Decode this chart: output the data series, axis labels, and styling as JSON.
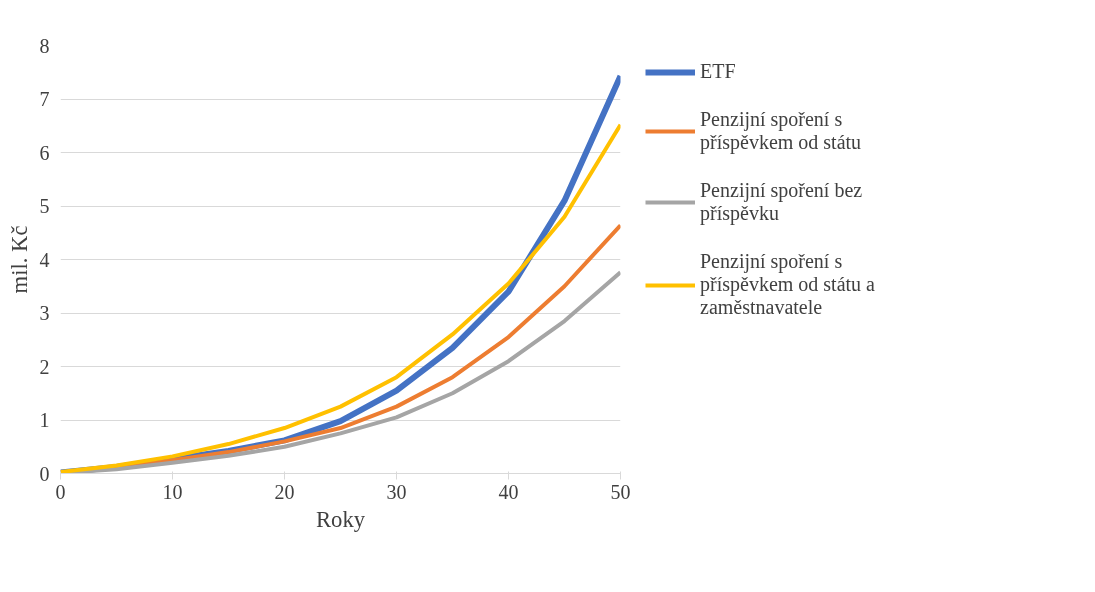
{
  "chart_data": {
    "type": "line",
    "xlabel": "Roky",
    "ylabel": "mil. Kč",
    "x": [
      0,
      5,
      10,
      15,
      20,
      25,
      30,
      35,
      40,
      45,
      50
    ],
    "series": [
      {
        "name": "ETF",
        "color": "#4472c4",
        "values": [
          0.02,
          0.12,
          0.27,
          0.42,
          0.62,
          0.98,
          1.55,
          2.35,
          3.4,
          5.1,
          7.43
        ]
      },
      {
        "name": "Penzijní spoření s příspěvkem od státu",
        "color": "#ed7d31",
        "values": [
          0.02,
          0.1,
          0.25,
          0.4,
          0.6,
          0.85,
          1.25,
          1.8,
          2.55,
          3.5,
          4.64
        ]
      },
      {
        "name": "Penzijní spoření bez příspěvku",
        "color": "#a5a5a5",
        "values": [
          0.01,
          0.08,
          0.2,
          0.33,
          0.5,
          0.75,
          1.05,
          1.5,
          2.1,
          2.85,
          3.76
        ]
      },
      {
        "name": "Penzijní spoření s příspěvkem od státu a zaměstnavatele",
        "color": "#ffc000",
        "values": [
          0.03,
          0.15,
          0.32,
          0.55,
          0.85,
          1.25,
          1.8,
          2.6,
          3.55,
          4.8,
          6.52
        ]
      }
    ],
    "xlim": [
      0,
      50
    ],
    "xticks": [
      0,
      10,
      20,
      30,
      40,
      50
    ],
    "ylim": [
      0,
      8
    ],
    "yticks": [
      0,
      1,
      2,
      3,
      4,
      5,
      6,
      7,
      8
    ],
    "grid": "y",
    "legend": "right",
    "marker": "none",
    "line_style": "solid"
  }
}
